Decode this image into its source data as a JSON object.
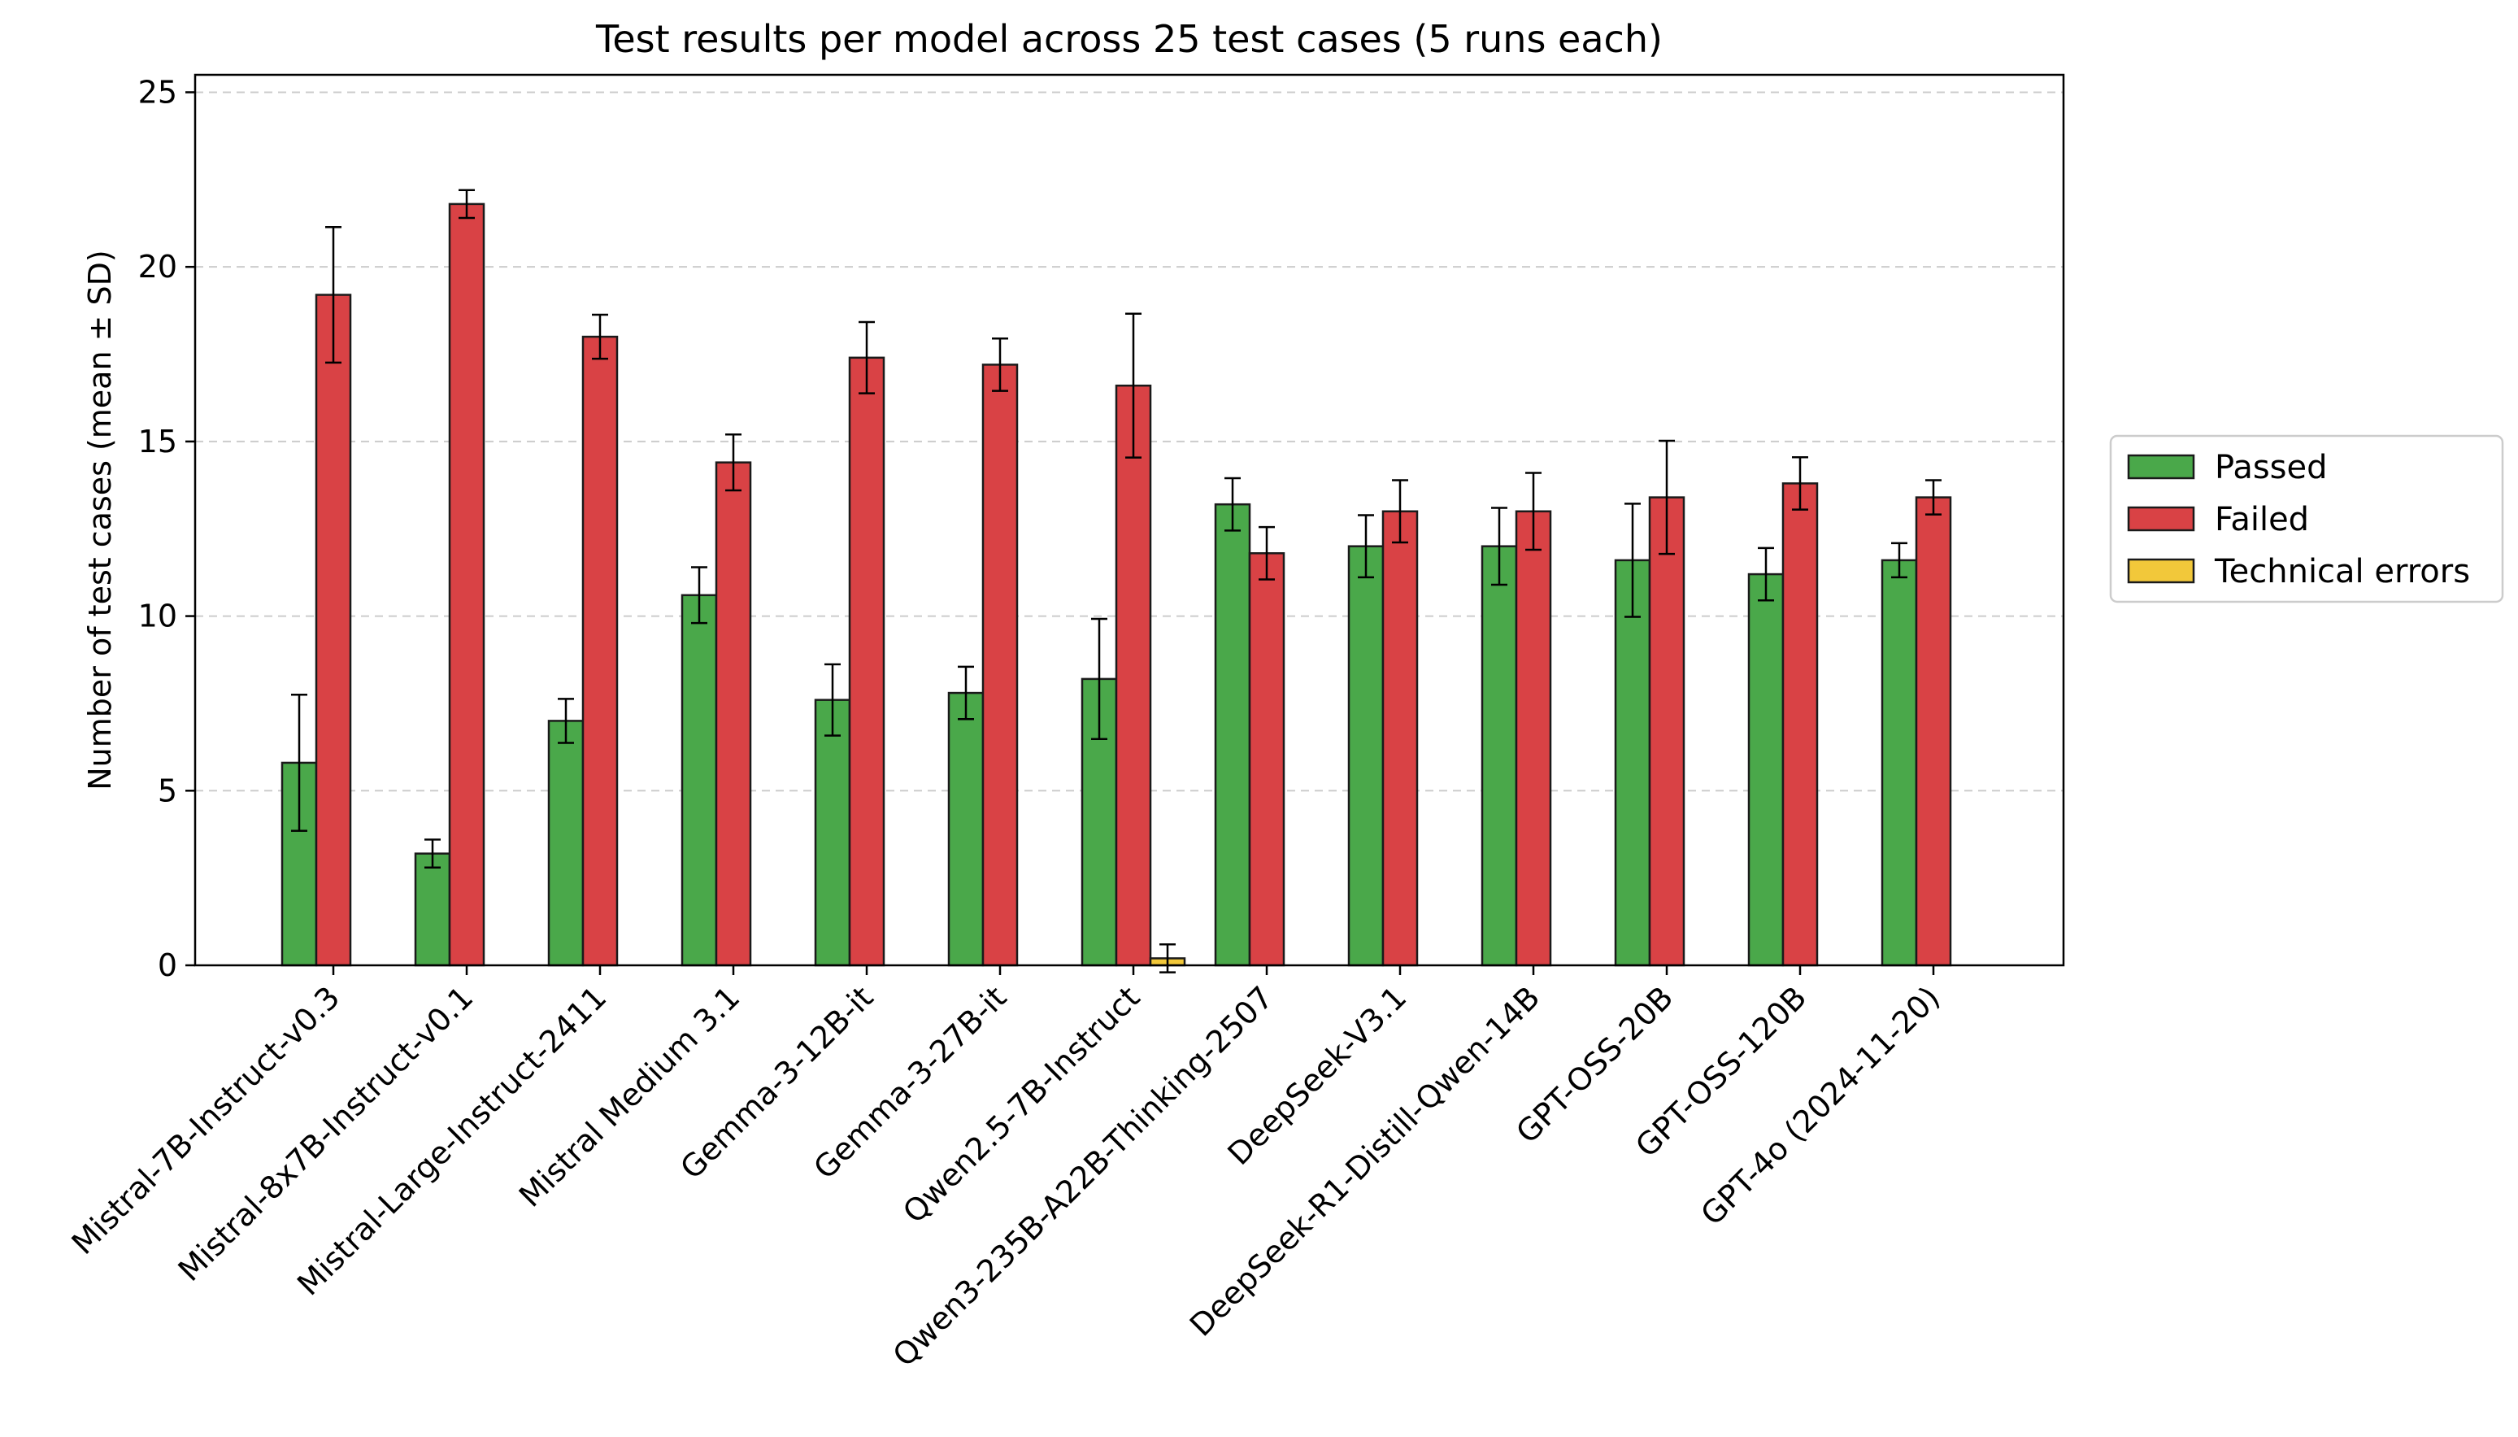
{
  "chart_data": {
    "type": "bar",
    "title": "Test results per model across 25 test cases (5 runs each)",
    "xlabel": "",
    "ylabel": "Number of test cases (mean ± SD)",
    "ylim": [
      0,
      25.5
    ],
    "yticks": [
      0,
      5,
      10,
      15,
      20,
      25
    ],
    "grid": "y-dashed",
    "legend_position": "right",
    "categories": [
      "Mistral-7B-Instruct-v0.3",
      "Mistral-8x7B-Instruct-v0.1",
      "Mistral-Large-Instruct-2411",
      "Mistral Medium 3.1",
      "Gemma-3-12B-it",
      "Gemma-3-27B-it",
      "Qwen2.5-7B-Instruct",
      "Qwen3-235B-A22B-Thinking-2507",
      "DeepSeek-V3.1",
      "DeepSeek-R1-Distill-Qwen-14B",
      "GPT-OSS-20B",
      "GPT-OSS-120B",
      "GPT-4o (2024-11-20)"
    ],
    "series": [
      {
        "name": "Passed",
        "color": "#4aa84a",
        "values": [
          5.8,
          3.2,
          7.0,
          10.6,
          7.6,
          7.8,
          8.2,
          13.2,
          12.0,
          12.0,
          11.6,
          11.2,
          11.6
        ],
        "errors": [
          1.95,
          0.4,
          0.63,
          0.8,
          1.02,
          0.75,
          1.72,
          0.75,
          0.89,
          1.1,
          1.62,
          0.75,
          0.49
        ]
      },
      {
        "name": "Failed",
        "color": "#d94245",
        "values": [
          19.2,
          21.8,
          18.0,
          14.4,
          17.4,
          17.2,
          16.6,
          11.8,
          13.0,
          13.0,
          13.4,
          13.8,
          13.4
        ],
        "errors": [
          1.94,
          0.4,
          0.63,
          0.8,
          1.02,
          0.75,
          2.06,
          0.75,
          0.89,
          1.1,
          1.62,
          0.75,
          0.49
        ]
      },
      {
        "name": "Technical errors",
        "color": "#f2c83a",
        "values": [
          0,
          0,
          0,
          0,
          0,
          0,
          0.2,
          0,
          0,
          0,
          0,
          0,
          0
        ],
        "errors": [
          0,
          0,
          0,
          0,
          0,
          0,
          0.4,
          0,
          0,
          0,
          0,
          0,
          0
        ]
      }
    ]
  }
}
